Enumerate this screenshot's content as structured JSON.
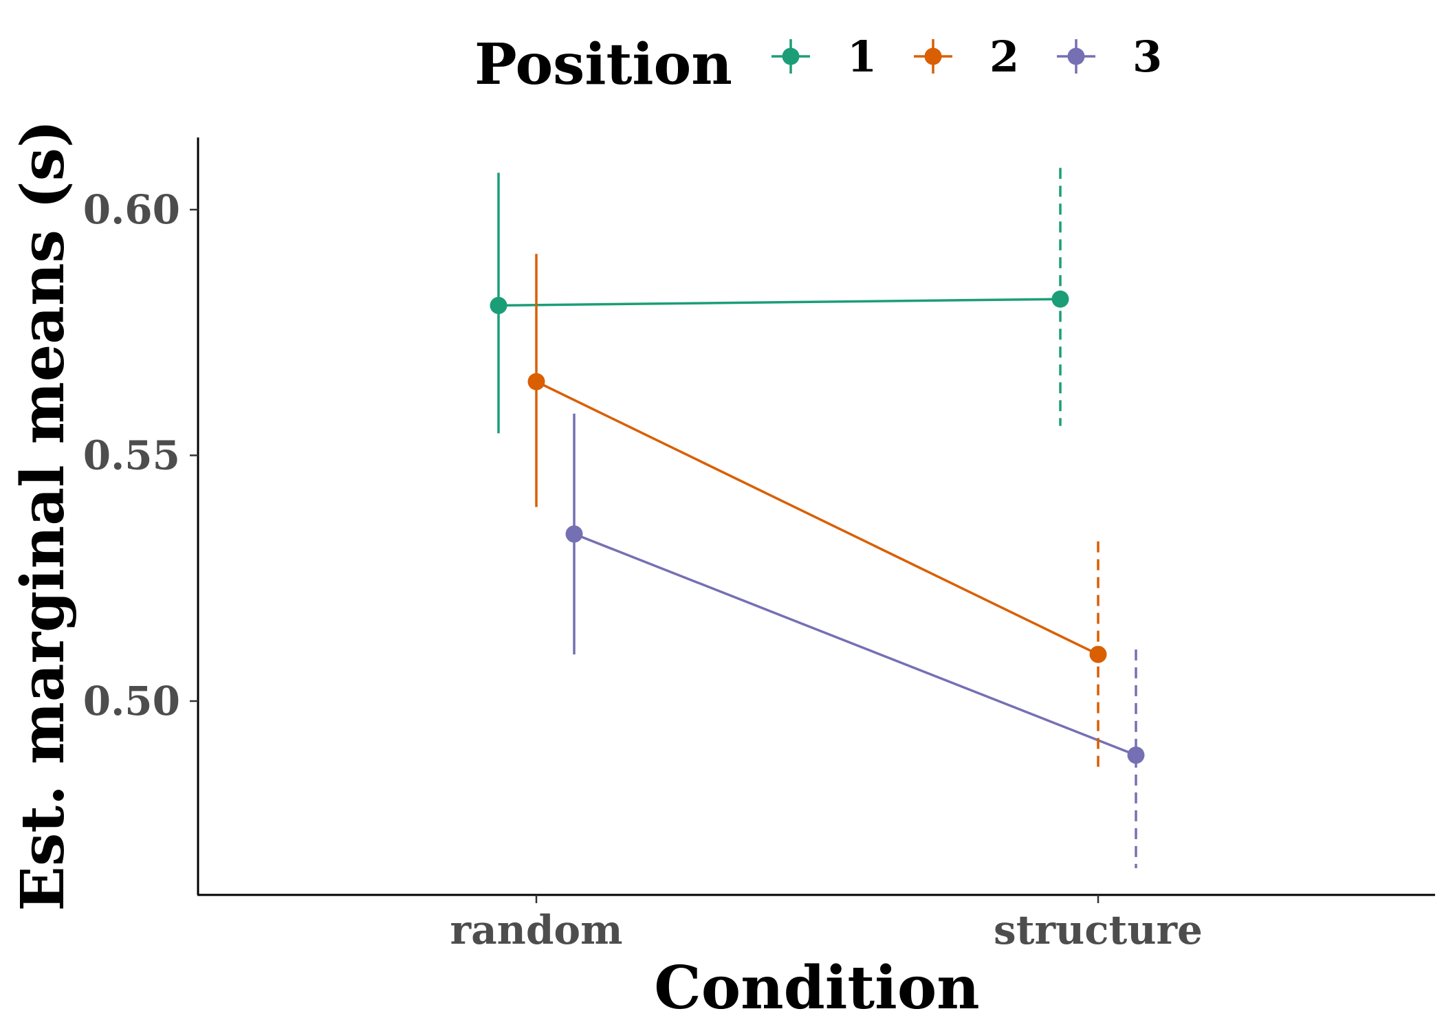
{
  "chart_data": {
    "type": "line",
    "xlabel": "Condition",
    "ylabel": "Est. marginal means (s)",
    "categories": [
      "random",
      "structure"
    ],
    "ylim": [
      0.46,
      0.615
    ],
    "yticks": [
      0.5,
      0.55,
      0.6
    ],
    "ytick_labels": [
      "0.50",
      "0.55",
      "0.60"
    ],
    "grid": false,
    "legend": {
      "title": "Position",
      "position": "top"
    },
    "series": [
      {
        "name": "1",
        "color": "#1b9e77",
        "values": [
          0.5805,
          0.5818
        ],
        "ci_lower": [
          0.5545,
          0.556
        ],
        "ci_upper": [
          0.6075,
          0.6085
        ],
        "ci_style": [
          "solid",
          "dashed"
        ]
      },
      {
        "name": "2",
        "color": "#d95f02",
        "values": [
          0.565,
          0.5095
        ],
        "ci_lower": [
          0.5395,
          0.4865
        ],
        "ci_upper": [
          0.591,
          0.5325
        ],
        "ci_style": [
          "solid",
          "dashed"
        ]
      },
      {
        "name": "3",
        "color": "#7570b3",
        "values": [
          0.534,
          0.489
        ],
        "ci_lower": [
          0.5095,
          0.466
        ],
        "ci_upper": [
          0.5585,
          0.5105
        ],
        "ci_style": [
          "solid",
          "dashed"
        ]
      }
    ]
  }
}
